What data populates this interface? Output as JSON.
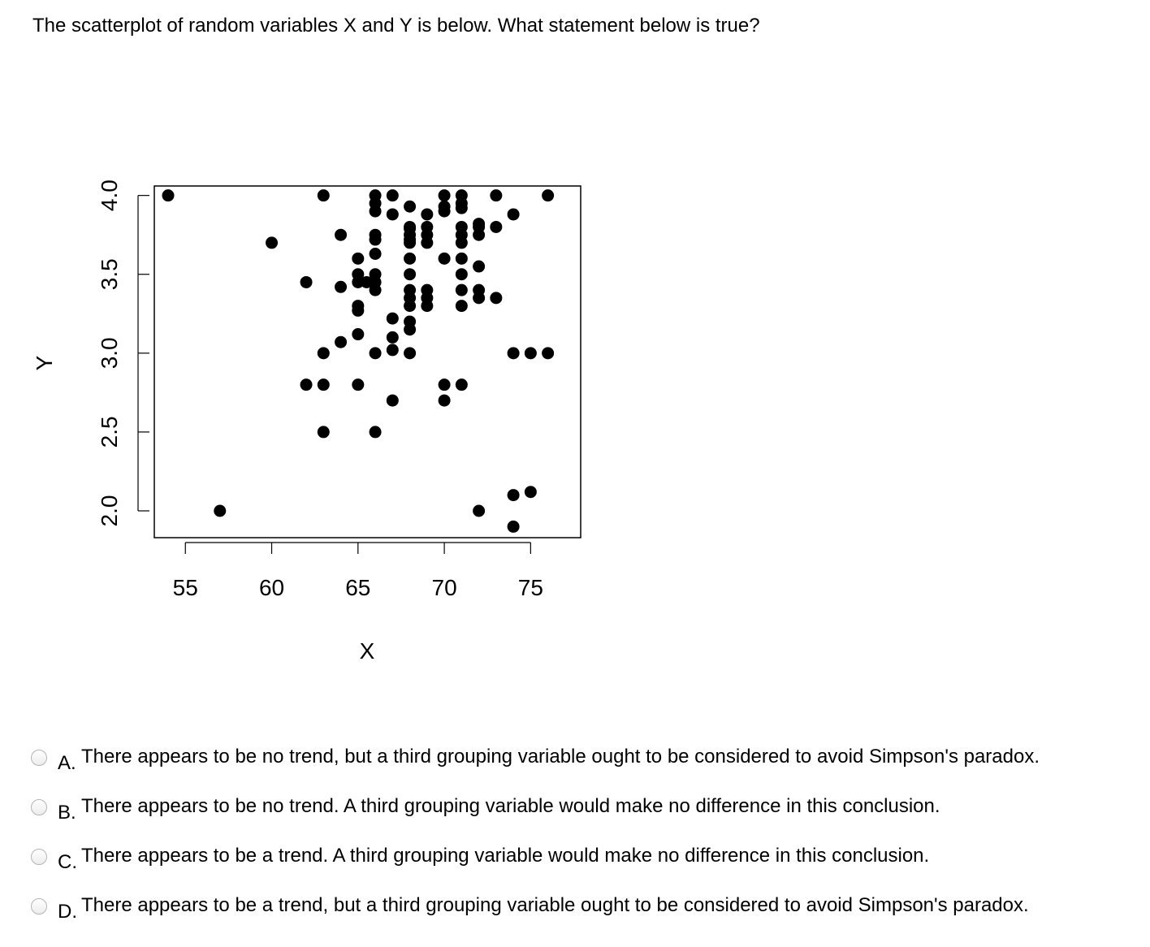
{
  "question": "The scatterplot of random variables X and Y is below.  What statement below is true?",
  "chart_data": {
    "type": "scatter",
    "title": "",
    "xlabel": "X",
    "ylabel": "Y",
    "xlim": [
      53.2,
      77.9
    ],
    "ylim": [
      1.83,
      4.06
    ],
    "x_ticks": [
      "55",
      "60",
      "65",
      "70",
      "75"
    ],
    "y_ticks": [
      "2.0",
      "2.5",
      "3.0",
      "3.5",
      "4.0"
    ],
    "grid": false,
    "legend": "none",
    "point_color": "#000000",
    "x": [
      54,
      57,
      60,
      62,
      62,
      63,
      63,
      63,
      63,
      64,
      64,
      64,
      65,
      65,
      65,
      65,
      65,
      65,
      65,
      65.5,
      66,
      66,
      66,
      66,
      66,
      66,
      66,
      66,
      66,
      66,
      66,
      67,
      67,
      67,
      67,
      67,
      67,
      68,
      68,
      68,
      68,
      68,
      68,
      68,
      68,
      68,
      68,
      68,
      68,
      68,
      68,
      69,
      69,
      69,
      69,
      69,
      69,
      69,
      70,
      70,
      70,
      70,
      70,
      70,
      71,
      71,
      71,
      71,
      71,
      71,
      71,
      71,
      71,
      71,
      71,
      72,
      72,
      72,
      72,
      72,
      72,
      72,
      73,
      73,
      73,
      74,
      74,
      74,
      74,
      75,
      75,
      76,
      76
    ],
    "y": [
      4.0,
      2.0,
      3.7,
      3.45,
      2.8,
      4.0,
      3.0,
      2.5,
      2.8,
      3.75,
      3.42,
      3.07,
      3.6,
      3.45,
      3.3,
      3.27,
      3.12,
      2.8,
      3.5,
      3.45,
      4.0,
      3.95,
      3.9,
      3.75,
      3.63,
      3.5,
      3.45,
      3.4,
      3.0,
      2.5,
      3.72,
      4.0,
      3.88,
      3.22,
      3.1,
      3.02,
      2.7,
      3.93,
      3.8,
      3.75,
      3.7,
      3.6,
      3.5,
      3.3,
      3.2,
      3.15,
      3.0,
      3.79,
      3.72,
      3.4,
      3.35,
      3.88,
      3.8,
      3.75,
      3.7,
      3.4,
      3.35,
      3.3,
      4.0,
      3.93,
      3.9,
      3.6,
      2.8,
      2.7,
      4.0,
      3.95,
      3.92,
      3.8,
      3.75,
      3.7,
      3.6,
      3.5,
      3.4,
      3.3,
      2.8,
      3.82,
      3.8,
      3.75,
      3.55,
      3.4,
      3.35,
      2.0,
      4.0,
      3.8,
      3.35,
      3.88,
      2.1,
      1.9,
      3.0,
      2.12,
      3.0,
      4.0,
      3.0
    ]
  },
  "options": [
    {
      "letter": "A.",
      "text": "There appears to be no trend, but a third grouping variable ought to be considered to avoid Simpson's paradox."
    },
    {
      "letter": "B.",
      "text": "There appears to be no trend.  A third grouping variable would make no difference in this conclusion."
    },
    {
      "letter": "C.",
      "text": "There appears to be a trend.  A third grouping variable would make no difference in this conclusion."
    },
    {
      "letter": "D.",
      "text": "There appears to be a trend, but a third grouping variable ought to be considered to avoid Simpson's paradox."
    }
  ]
}
